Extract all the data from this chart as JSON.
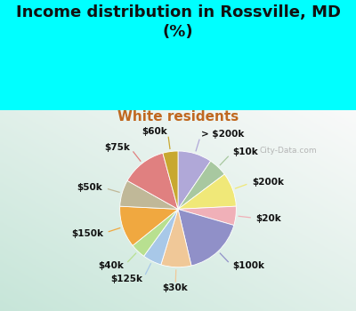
{
  "title": "Income distribution in Rossville, MD\n(%)",
  "subtitle": "White residents",
  "outer_bg_color": "#00FFFF",
  "chart_bg_color": "#d8f0e8",
  "labels": [
    "> $200k",
    "$10k",
    "$200k",
    "$20k",
    "$100k",
    "$30k",
    "$125k",
    "$40k",
    "$150k",
    "$50k",
    "$75k",
    "$60k"
  ],
  "values": [
    9,
    5,
    9,
    5,
    16,
    8,
    5,
    4,
    11,
    7,
    12,
    4
  ],
  "colors": [
    "#b0a8d8",
    "#a8c8a0",
    "#f0e878",
    "#f0b0b8",
    "#9090c8",
    "#f0c898",
    "#a8c8e8",
    "#b8e090",
    "#f0a840",
    "#c0b898",
    "#e08080",
    "#c8a830"
  ],
  "watermark": "City-Data.com",
  "label_fontsize": 7.5,
  "title_fontsize": 13,
  "subtitle_fontsize": 11,
  "subtitle_color": "#c06820"
}
